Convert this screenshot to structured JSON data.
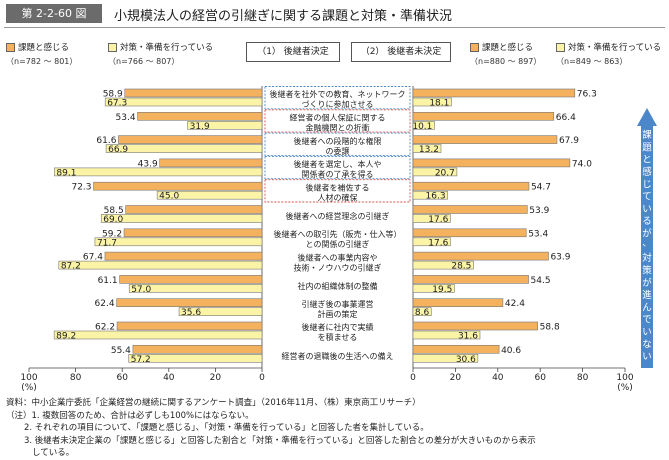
{
  "figure": {
    "label": "第 2-2-60 図",
    "title": "小規模法人の経営の引継ぎに関する課題と対策・準備状況"
  },
  "legend": {
    "left": {
      "challenge": "課題と感じる",
      "challenge_n": "（n=782 ～ 801）",
      "prep": "対策・準備を行っている",
      "prep_n": "（n=766 ～ 807）"
    },
    "right": {
      "challenge": "課題と感じる",
      "challenge_n": "（n=880 ～ 897）",
      "prep": "対策・準備を行っている",
      "prep_n": "（n=849 ～ 863）"
    }
  },
  "panels": {
    "left": "（1） 後継者決定",
    "right": "（2） 後継者未決定"
  },
  "arrow_text": "課題と感じているが、対策が進んでいない",
  "colors": {
    "challenge": "#f5b25e",
    "prep": "#fbf3a5",
    "arrow": "#4c88c9",
    "dotted_red": "#d9534f",
    "dotted_blue": "#4c88c9"
  },
  "chart_data": {
    "type": "bar",
    "orientation": "horizontal-butterfly",
    "categories": [
      [
        "後継者を社外での教育、ネットワーク",
        "づくりに参加させる"
      ],
      [
        "経営者の個人保証に関する",
        "金融機関との折衝"
      ],
      [
        "後継者への段階的な権限",
        "の委譲"
      ],
      [
        "後継者を選定し、本人や",
        "関係者の了承を得る"
      ],
      [
        "後継者を補佐する",
        "人材の確保"
      ],
      [
        "後継者への経営理念の引継ぎ"
      ],
      [
        "後継者への取引先（販売・仕入等）",
        "との関係の引継ぎ"
      ],
      [
        "後継者への事業内容や",
        "技術・ノウハウの引継ぎ"
      ],
      [
        "社内の組織体制の整備"
      ],
      [
        "引継ぎ後の事業運営",
        "計画の策定"
      ],
      [
        "後継者に社内で実績",
        "を積ませる"
      ],
      [
        "経営者の退職後の生活への備え"
      ]
    ],
    "highlight": [
      "blue",
      "red",
      "blue",
      "blue",
      "red",
      null,
      null,
      null,
      null,
      null,
      null,
      null
    ],
    "series": [
      {
        "panel": "後継者決定",
        "name": "課題と感じる",
        "values": [
          58.9,
          53.4,
          61.6,
          43.9,
          72.3,
          58.5,
          59.2,
          67.4,
          61.1,
          62.4,
          62.2,
          55.4
        ]
      },
      {
        "panel": "後継者決定",
        "name": "対策・準備を行っている",
        "values": [
          67.3,
          31.9,
          66.9,
          89.1,
          45.0,
          69.0,
          71.7,
          87.2,
          57.0,
          35.6,
          89.2,
          57.2
        ]
      },
      {
        "panel": "後継者未決定",
        "name": "課題と感じる",
        "values": [
          76.3,
          66.4,
          67.9,
          74.0,
          54.7,
          53.9,
          53.4,
          63.9,
          54.5,
          42.4,
          58.8,
          40.6
        ]
      },
      {
        "panel": "後継者未決定",
        "name": "対策・準備を行っている",
        "values": [
          18.1,
          10.1,
          13.2,
          20.7,
          16.3,
          17.6,
          17.6,
          28.5,
          19.5,
          8.6,
          31.6,
          30.6
        ]
      }
    ],
    "xlim": [
      0,
      100
    ],
    "ticks": [
      "100",
      "80",
      "60",
      "40",
      "20",
      "0"
    ],
    "ticks_right": [
      "0",
      "20",
      "40",
      "60",
      "80",
      "100"
    ],
    "unit": "(%)"
  },
  "notes": [
    "資料：中小企業庁委託「企業経営の継続に関するアンケート調査」（2016年11月、（株）東京商工リサーチ）",
    "（注）1. 複数回答のため、合計は必ずしも100%にはならない。",
    "2. それぞれの項目について、「課題と感じる」、「対策・準備を行っている」と回答した者を集計している。",
    "3. 後継者未決定企業の「課題と感じる」と回答した割合と「対策・準備を行っている」と回答した割合との差分が大きいものから表示",
    "している。"
  ]
}
